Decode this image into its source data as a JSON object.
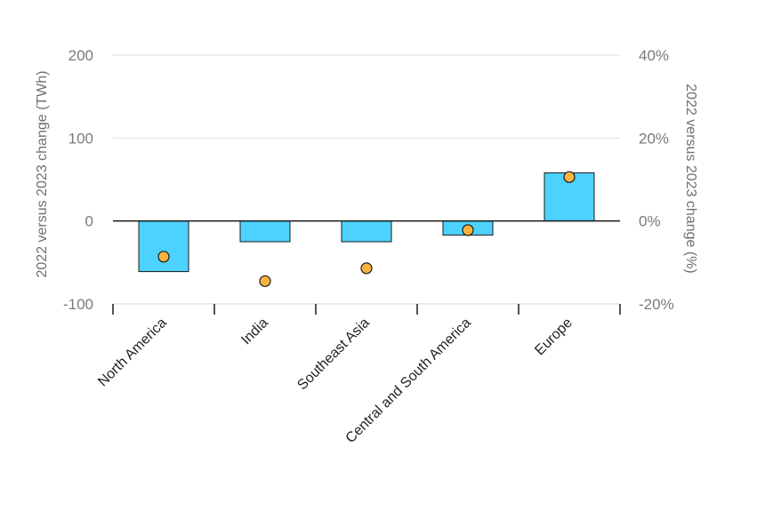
{
  "chart_data": {
    "type": "bar",
    "categories": [
      "North America",
      "India",
      "Southeast Asia",
      "Central and South America",
      "Europe"
    ],
    "series": [
      {
        "type": "bar",
        "axis": "left",
        "values": [
          -61,
          -25,
          -25,
          -17,
          58
        ]
      },
      {
        "type": "scatter",
        "axis": "right",
        "values": [
          -8.6,
          -14.5,
          -11.4,
          -2.2,
          10.6
        ]
      }
    ],
    "ylabel": "2022 versus 2023 change (TWh)",
    "y2label": "2022 versus 2023 change (%)",
    "ylim": [
      -100,
      200
    ],
    "y2lim": [
      -20,
      40
    ],
    "yticks": [
      "200",
      "100",
      "0",
      "-100"
    ],
    "y2ticks": [
      "40%",
      "20%",
      "0%",
      "-20%"
    ],
    "grid": true,
    "colors": {
      "bar": "#4dd2ff",
      "bar_stroke": "#1a1a1a",
      "dot": "#f9b342",
      "dot_stroke": "#1a1a1a",
      "grid": "#e3e3e3",
      "zero_line": "#1a1a1a"
    }
  }
}
